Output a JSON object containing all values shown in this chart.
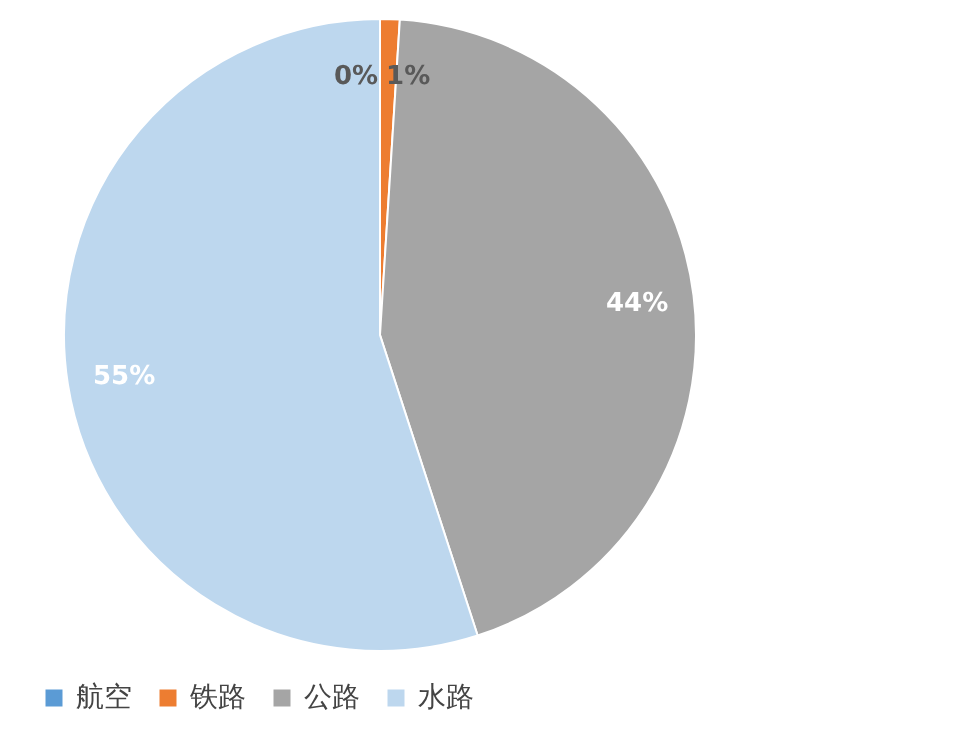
{
  "chart_data": {
    "type": "pie",
    "categories": [
      "航空",
      "铁路",
      "公路",
      "水路"
    ],
    "values": [
      0,
      1,
      44,
      55
    ],
    "colors": [
      "#5b9bd5",
      "#ed7d31",
      "#a5a5a5",
      "#bdd7ee"
    ],
    "value_labels": [
      "0%",
      "1%",
      "44%",
      "55%"
    ],
    "legend": "bottom"
  }
}
